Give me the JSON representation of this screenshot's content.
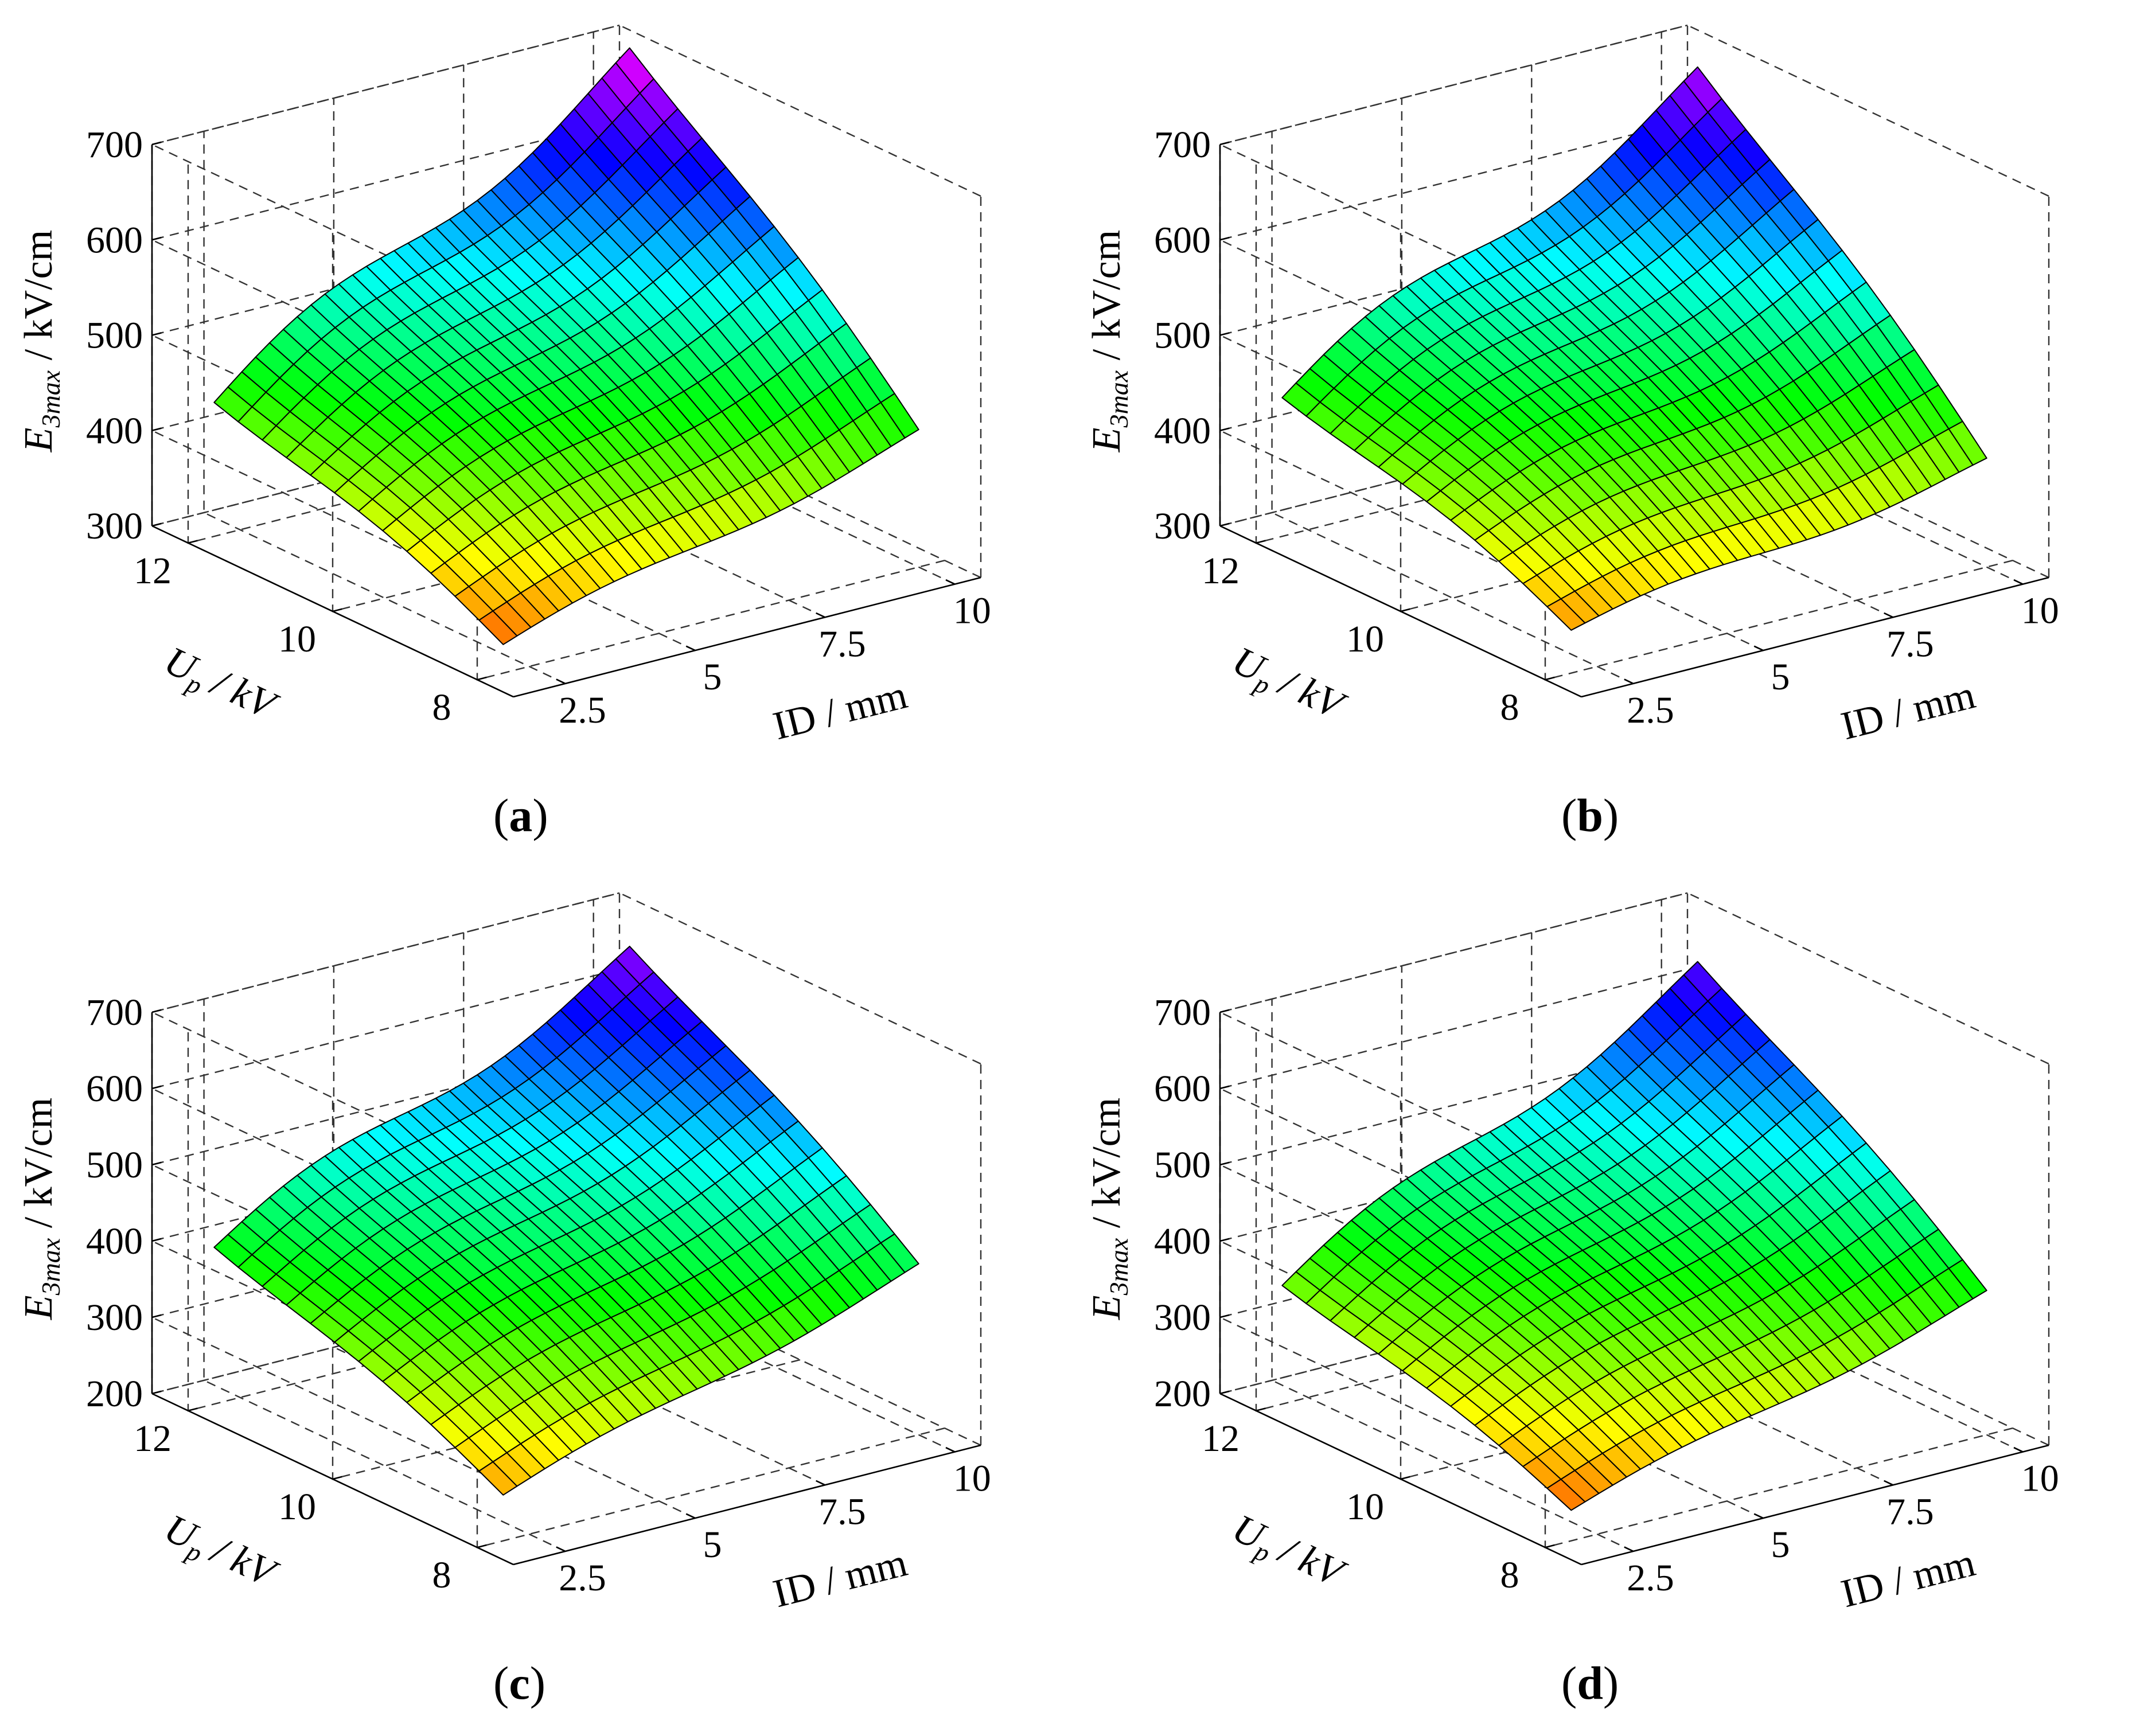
{
  "chart_data": [
    {
      "type": "surface",
      "panel_label": "a",
      "title": "",
      "xlabel": "ID / mm",
      "ylabel_base": "U",
      "ylabel_sub": "p",
      "ylabel_unit": " / kV",
      "zlabel_base": "E",
      "zlabel_sub": "3max",
      "zlabel_unit": " / kV/cm",
      "x_ticks": [
        "2.5",
        "5",
        "7.5",
        "10"
      ],
      "y_ticks": [
        "8",
        "10",
        "12"
      ],
      "z_ticks": [
        "300",
        "400",
        "500",
        "600",
        "700"
      ],
      "xlim": [
        1.5,
        10.5
      ],
      "ylim": [
        7.5,
        12.5
      ],
      "zlim": [
        300,
        700
      ],
      "corner_values": {
        "low_ID_low_Up": 330,
        "high_ID_low_Up": 440,
        "low_ID_high_Up": 450,
        "high_ID_high_Up": 700
      },
      "grid": "on",
      "colormap": "hsv"
    },
    {
      "type": "surface",
      "panel_label": "b",
      "title": "",
      "xlabel": "ID / mm",
      "ylabel_base": "U",
      "ylabel_sub": "p",
      "ylabel_unit": " / kV",
      "zlabel_base": "E",
      "zlabel_sub": "3max",
      "zlabel_unit": " / kV/cm",
      "x_ticks": [
        "2.5",
        "5",
        "7.5",
        "10"
      ],
      "y_ticks": [
        "8",
        "10",
        "12"
      ],
      "z_ticks": [
        "300",
        "400",
        "500",
        "600",
        "700"
      ],
      "xlim": [
        1.5,
        10.5
      ],
      "ylim": [
        7.5,
        12.5
      ],
      "zlim": [
        300,
        700
      ],
      "corner_values": {
        "low_ID_low_Up": 345,
        "high_ID_low_Up": 410,
        "low_ID_high_Up": 455,
        "high_ID_high_Up": 680
      },
      "grid": "on",
      "colormap": "hsv"
    },
    {
      "type": "surface",
      "panel_label": "c",
      "title": "",
      "xlabel": "ID / mm",
      "ylabel_base": "U",
      "ylabel_sub": "p",
      "ylabel_unit": " / kV",
      "zlabel_base": "E",
      "zlabel_sub": "3max",
      "zlabel_unit": " / kV/cm",
      "x_ticks": [
        "2.5",
        "5",
        "7.5",
        "10"
      ],
      "y_ticks": [
        "8",
        "10",
        "12"
      ],
      "z_ticks": [
        "200",
        "300",
        "400",
        "500",
        "600",
        "700"
      ],
      "xlim": [
        1.5,
        10.5
      ],
      "ylim": [
        7.5,
        12.5
      ],
      "zlim": [
        200,
        700
      ],
      "corner_values": {
        "low_ID_low_Up": 260,
        "high_ID_low_Up": 420,
        "low_ID_high_Up": 415,
        "high_ID_high_Up": 660
      },
      "grid": "on",
      "colormap": "hsv"
    },
    {
      "type": "surface",
      "panel_label": "d",
      "title": "",
      "xlabel": "ID / mm",
      "ylabel_base": "U",
      "ylabel_sub": "p",
      "ylabel_unit": " / kV",
      "zlabel_base": "E",
      "zlabel_sub": "3max",
      "zlabel_unit": " / kV/cm",
      "x_ticks": [
        "2.5",
        "5",
        "7.5",
        "10"
      ],
      "y_ticks": [
        "8",
        "10",
        "12"
      ],
      "z_ticks": [
        "200",
        "300",
        "400",
        "500",
        "600",
        "700"
      ],
      "xlim": [
        1.5,
        10.5
      ],
      "ylim": [
        7.5,
        12.5
      ],
      "zlim": [
        200,
        700
      ],
      "corner_values": {
        "low_ID_low_Up": 240,
        "high_ID_low_Up": 385,
        "low_ID_high_Up": 365,
        "high_ID_high_Up": 640
      },
      "grid": "on",
      "colormap": "hsv"
    }
  ]
}
